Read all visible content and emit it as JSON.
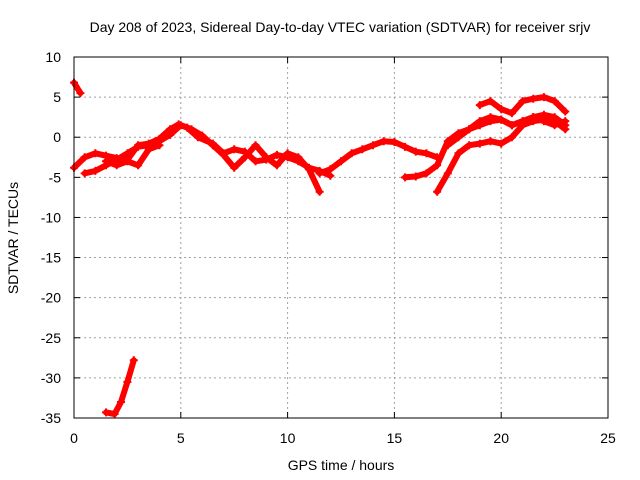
{
  "chart_data": {
    "type": "scatter",
    "title": "Day 208 of 2023, Sidereal Day-to-day VTEC variation (SDTVAR) for receiver srjv",
    "xlabel": "GPS time / hours",
    "ylabel": "SDTVAR / TECUs",
    "xlim": [
      0,
      25
    ],
    "ylim": [
      -35,
      10
    ],
    "xticks": [
      "0",
      "5",
      "10",
      "15",
      "20",
      "25"
    ],
    "yticks": [
      "10",
      "5",
      "0",
      "-5",
      "-10",
      "-15",
      "-20",
      "-25",
      "-30",
      "-35"
    ],
    "grid": true,
    "color": "#ff0000",
    "series": [
      {
        "name": "s1",
        "x": [
          0.0,
          0.3
        ],
        "y": [
          6.8,
          5.5
        ]
      },
      {
        "name": "s2",
        "x": [
          1.5,
          1.9,
          2.2,
          2.5,
          2.8
        ],
        "y": [
          -34.3,
          -34.5,
          -33.0,
          -30.5,
          -27.8
        ]
      },
      {
        "name": "s3",
        "x": [
          0.0,
          0.5,
          1.0,
          1.5,
          2.0,
          2.5,
          3.0,
          3.5,
          4.0,
          4.5,
          4.9,
          5.3,
          5.8,
          6.5,
          7.0,
          7.5,
          8.0,
          8.5,
          9.0,
          9.5,
          10.0,
          10.5,
          11.0,
          11.5,
          12.0
        ],
        "y": [
          -3.8,
          -2.5,
          -2.0,
          -2.3,
          -2.6,
          -2.8,
          -1.0,
          -0.8,
          -0.2,
          1.0,
          1.6,
          1.2,
          0.0,
          -0.8,
          -2.0,
          -1.5,
          -1.8,
          -3.0,
          -2.8,
          -2.2,
          -2.5,
          -3.0,
          -3.8,
          -4.2,
          -4.8
        ]
      },
      {
        "name": "s4",
        "x": [
          0.5,
          1.0,
          1.5,
          2.0,
          2.5,
          3.0,
          3.5,
          4.0,
          4.5,
          5.0,
          5.5,
          6.0,
          6.5,
          7.0,
          7.5,
          8.0,
          8.5,
          9.0,
          9.5,
          10.0,
          10.5,
          11.0,
          11.5
        ],
        "y": [
          -4.5,
          -4.2,
          -3.5,
          -2.8,
          -2.0,
          -1.2,
          -1.0,
          -0.5,
          0.3,
          1.5,
          1.0,
          0.2,
          -1.0,
          -2.2,
          -3.8,
          -2.5,
          -1.0,
          -2.5,
          -3.5,
          -2.0,
          -2.5,
          -4.0,
          -6.8
        ]
      },
      {
        "name": "s5",
        "x": [
          1.5,
          2.0,
          2.5,
          3.0,
          3.5,
          4.0
        ],
        "y": [
          -3.0,
          -3.5,
          -3.0,
          -3.5,
          -1.5,
          -1.0
        ]
      },
      {
        "name": "s6",
        "x": [
          11.5,
          12.0,
          12.5,
          13.0,
          13.5,
          14.0,
          14.5,
          15.0,
          15.5,
          16.0,
          16.5,
          17.0
        ],
        "y": [
          -4.5,
          -4.0,
          -3.0,
          -2.0,
          -1.5,
          -1.0,
          -0.5,
          -0.6,
          -1.2,
          -1.8,
          -2.0,
          -2.5
        ]
      },
      {
        "name": "s7",
        "x": [
          15.5,
          16.0,
          16.5,
          17.0,
          17.5,
          18.0,
          18.5,
          19.0,
          19.5,
          20.0,
          20.5,
          21.0,
          21.5,
          22.0,
          22.5,
          23.0
        ],
        "y": [
          -5.0,
          -4.9,
          -4.5,
          -3.5,
          -0.5,
          0.5,
          1.0,
          1.5,
          2.0,
          2.2,
          1.5,
          2.0,
          2.5,
          2.8,
          2.5,
          1.5
        ]
      },
      {
        "name": "s8",
        "x": [
          17.0,
          17.5,
          18.0,
          18.5,
          19.0,
          19.5,
          20.0,
          20.5,
          21.0,
          21.5,
          22.0,
          22.5,
          23.0
        ],
        "y": [
          -6.8,
          -4.5,
          -2.0,
          -1.0,
          -0.8,
          -0.5,
          -0.8,
          0.0,
          1.5,
          2.0,
          2.2,
          2.0,
          1.0
        ]
      },
      {
        "name": "s9",
        "x": [
          17.5,
          18.0,
          18.5,
          19.0,
          19.5,
          20.0,
          20.5,
          21.0,
          21.5,
          22.0,
          22.5,
          23.0
        ],
        "y": [
          -1.0,
          0.0,
          1.0,
          2.0,
          2.5,
          2.2,
          1.5,
          2.0,
          2.5,
          2.0,
          1.5,
          2.0
        ]
      },
      {
        "name": "s10",
        "x": [
          19.0,
          19.5,
          20.0,
          20.5,
          21.0,
          21.5,
          22.0,
          22.5,
          23.0
        ],
        "y": [
          4.0,
          4.5,
          3.5,
          3.0,
          4.5,
          4.8,
          5.0,
          4.5,
          3.2
        ]
      }
    ]
  }
}
